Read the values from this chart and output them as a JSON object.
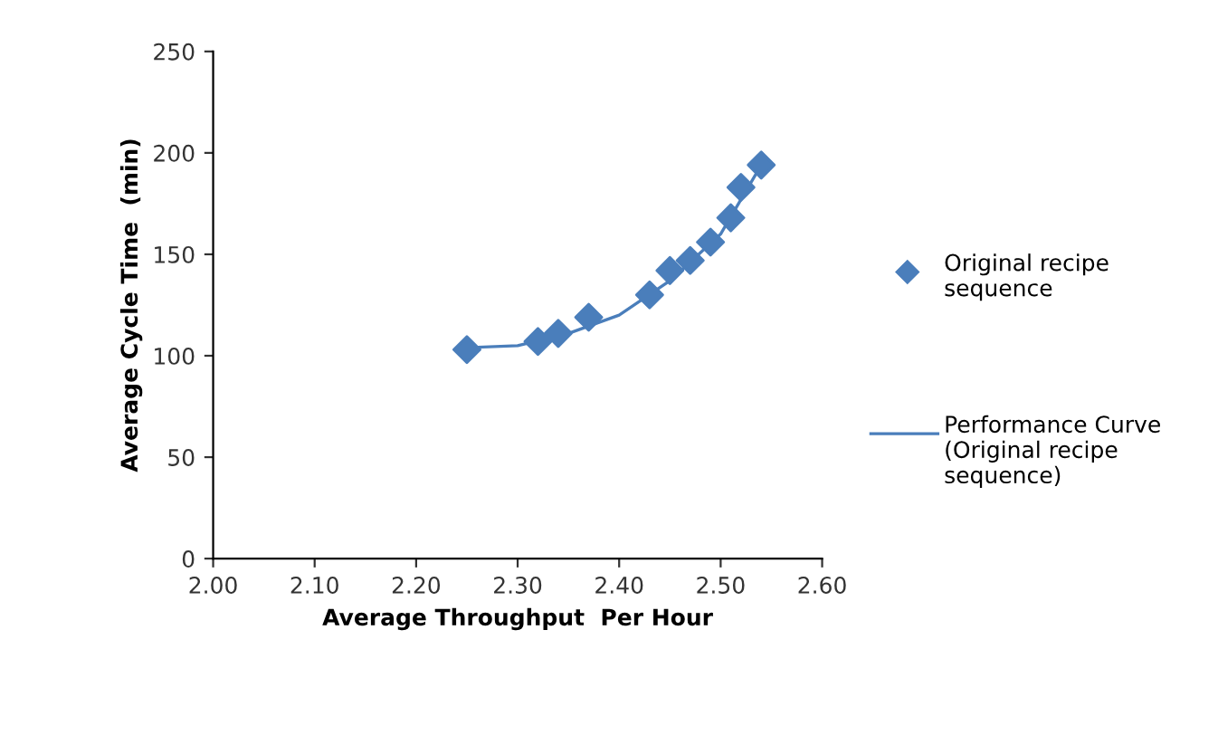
{
  "chart_data": {
    "type": "scatter",
    "xlabel": "Average Throughput  Per Hour",
    "ylabel": "Average Cycle Time  (min)",
    "xlim": [
      2.0,
      2.6
    ],
    "xticks": [
      {
        "value": 2.0,
        "label": "2.00"
      },
      {
        "value": 2.1,
        "label": "2.10"
      },
      {
        "value": 2.2,
        "label": "2.20"
      },
      {
        "value": 2.3,
        "label": "2.30"
      },
      {
        "value": 2.4,
        "label": "2.40"
      },
      {
        "value": 2.5,
        "label": "2.50"
      },
      {
        "value": 2.6,
        "label": "2.60"
      }
    ],
    "ylim": [
      0,
      250
    ],
    "yticks": [
      0,
      50,
      100,
      150,
      200,
      250
    ],
    "grid": false,
    "legend": "right",
    "series": [
      {
        "name": "Original recipe sequence",
        "marker": "diamond",
        "color": "#4a7ebb",
        "x": [
          2.25,
          2.32,
          2.34,
          2.37,
          2.43,
          2.45,
          2.47,
          2.49,
          2.51,
          2.52,
          2.54
        ],
        "values": [
          103,
          107,
          111,
          119,
          130,
          142,
          147,
          156,
          168,
          183,
          194
        ]
      },
      {
        "name": "Performance Curve (Original recipe sequence)",
        "type": "line",
        "color": "#4a7ebb",
        "line_style": "solid",
        "x": [
          2.25,
          2.3,
          2.35,
          2.4,
          2.45,
          2.5,
          2.54
        ],
        "values": [
          104,
          105,
          111,
          120,
          137,
          160,
          194
        ]
      }
    ]
  }
}
